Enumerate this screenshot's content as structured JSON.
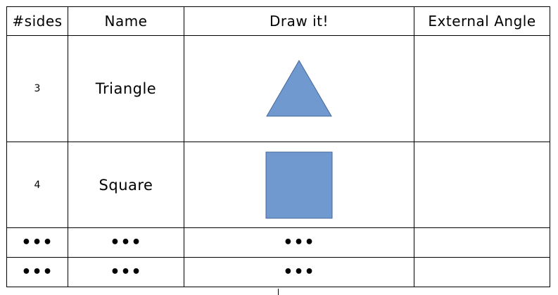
{
  "headers": {
    "sides": "#sides",
    "name": "Name",
    "draw": "Draw it!",
    "external_angle": "External Angle"
  },
  "rows": [
    {
      "sides": "3",
      "name": "Triangle",
      "shape": "triangle",
      "external_angle": ""
    },
    {
      "sides": "4",
      "name": "Square",
      "shape": "square",
      "external_angle": ""
    },
    {
      "sides": "•••",
      "name": "•••",
      "draw": "•••",
      "external_angle": ""
    },
    {
      "sides": "•••",
      "name": "•••",
      "draw": "•••",
      "external_angle": ""
    }
  ],
  "colors": {
    "shape_fill": "#7099d0",
    "shape_stroke": "#44679b",
    "border": "#000000"
  }
}
